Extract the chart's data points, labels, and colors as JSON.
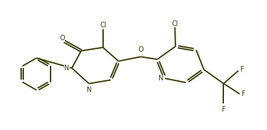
{
  "background_color": "#ffffff",
  "line_color": "#3a3a00",
  "text_color": "#3a3a00",
  "line_width": 1.4,
  "fig_width": 3.91,
  "fig_height": 1.91,
  "dpi": 100,
  "xlim": [
    0,
    10
  ],
  "ylim": [
    0,
    5
  ]
}
